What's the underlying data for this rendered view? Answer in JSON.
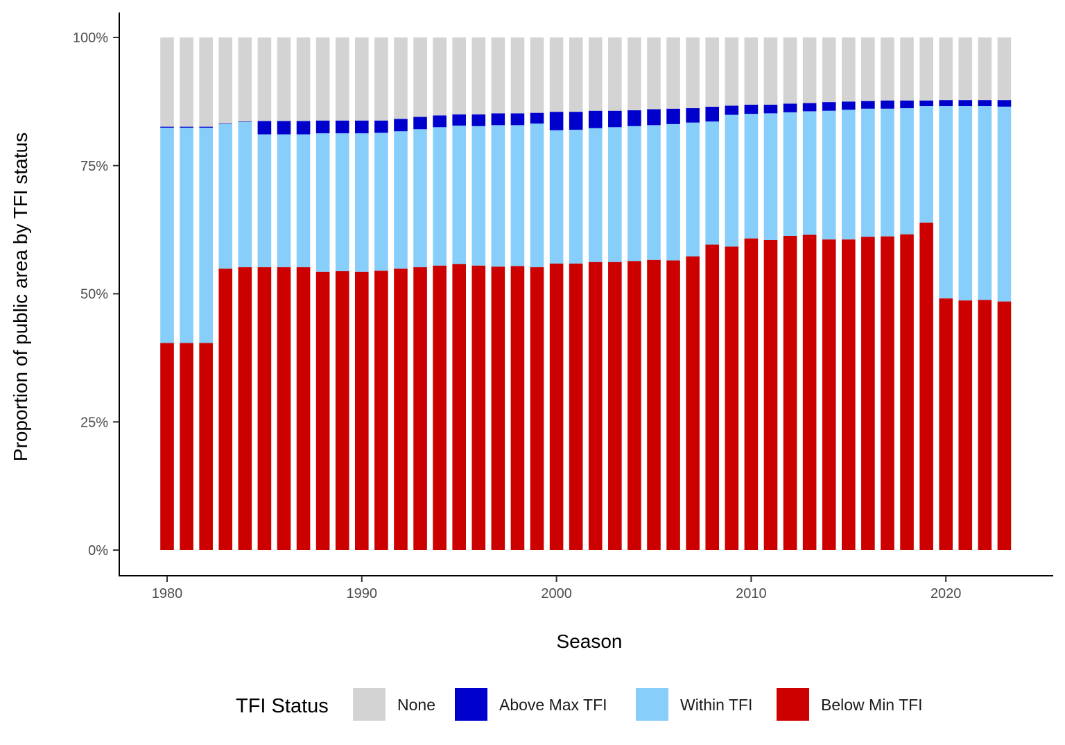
{
  "chart_data": {
    "type": "bar",
    "stacked": true,
    "xlabel": "Season",
    "ylabel": "Proportion of public area by TFI status",
    "ylim": [
      0,
      100
    ],
    "yticks": [
      "0%",
      "25%",
      "50%",
      "75%",
      "100%"
    ],
    "xticks": [
      "1980",
      "1990",
      "2000",
      "2010",
      "2020"
    ],
    "grid": false,
    "legend_position": "bottom",
    "legend_title": "TFI Status",
    "categories": [
      1980,
      1981,
      1982,
      1983,
      1984,
      1985,
      1986,
      1987,
      1988,
      1989,
      1990,
      1991,
      1992,
      1993,
      1994,
      1995,
      1996,
      1997,
      1998,
      1999,
      2000,
      2001,
      2002,
      2003,
      2004,
      2005,
      2006,
      2007,
      2008,
      2009,
      2010,
      2011,
      2012,
      2013,
      2014,
      2015,
      2016,
      2017,
      2018,
      2019,
      2020,
      2021,
      2022,
      2023
    ],
    "series": [
      {
        "name": "Below Min TFI",
        "color": "#cd0000",
        "values": [
          40.4,
          40.4,
          40.4,
          54.9,
          55.2,
          55.2,
          55.2,
          55.2,
          54.3,
          54.4,
          54.3,
          54.5,
          54.9,
          55.2,
          55.5,
          55.8,
          55.5,
          55.3,
          55.4,
          55.2,
          55.9,
          55.9,
          56.2,
          56.2,
          56.4,
          56.6,
          56.5,
          57.3,
          59.6,
          59.2,
          60.8,
          60.5,
          61.3,
          61.5,
          60.6,
          60.6,
          61.1,
          61.2,
          61.6,
          63.9,
          49.1,
          48.7,
          48.8,
          48.5
        ]
      },
      {
        "name": "Within TFI",
        "color": "#87cefa",
        "values": [
          42.0,
          42.0,
          42.0,
          28.2,
          28.3,
          25.9,
          25.9,
          25.9,
          27.0,
          26.9,
          27.0,
          26.9,
          26.8,
          26.9,
          27.0,
          27.0,
          27.2,
          27.6,
          27.5,
          28.0,
          26.0,
          26.1,
          26.1,
          26.3,
          26.3,
          26.3,
          26.6,
          26.1,
          24.0,
          25.7,
          24.3,
          24.7,
          24.1,
          24.1,
          25.1,
          25.3,
          25.0,
          24.9,
          24.6,
          22.7,
          37.5,
          37.9,
          37.8,
          38.0
        ]
      },
      {
        "name": "Above Max TFI",
        "color": "#0000cd",
        "values": [
          0.2,
          0.2,
          0.2,
          0.1,
          0.1,
          2.6,
          2.6,
          2.6,
          2.5,
          2.5,
          2.5,
          2.4,
          2.4,
          2.4,
          2.3,
          2.2,
          2.3,
          2.3,
          2.3,
          2.1,
          3.6,
          3.5,
          3.4,
          3.2,
          3.1,
          3.1,
          3.0,
          2.8,
          2.9,
          1.8,
          1.8,
          1.7,
          1.7,
          1.6,
          1.7,
          1.6,
          1.5,
          1.6,
          1.5,
          1.1,
          1.2,
          1.2,
          1.2,
          1.3
        ]
      },
      {
        "name": "None",
        "color": "#d3d3d3",
        "values": [
          17.4,
          17.4,
          17.4,
          16.8,
          16.4,
          16.3,
          16.3,
          16.3,
          16.2,
          16.2,
          16.2,
          16.2,
          15.9,
          15.5,
          15.2,
          15.0,
          15.0,
          14.8,
          14.8,
          14.7,
          14.5,
          14.5,
          14.3,
          14.3,
          14.2,
          14.0,
          13.9,
          13.8,
          13.5,
          13.3,
          13.1,
          13.1,
          12.9,
          12.8,
          12.6,
          12.5,
          12.4,
          12.3,
          12.3,
          12.3,
          12.2,
          12.2,
          12.2,
          12.2
        ]
      }
    ],
    "legend_order": [
      "None",
      "Above Max TFI",
      "Within TFI",
      "Below Min TFI"
    ]
  }
}
